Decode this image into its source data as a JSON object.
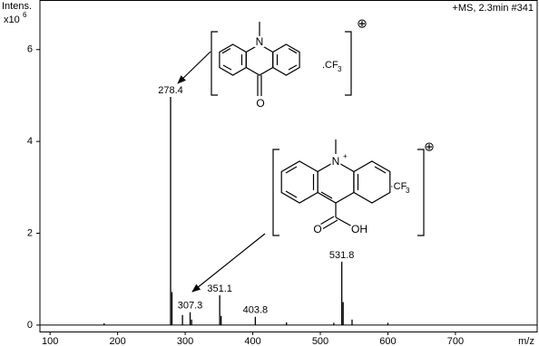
{
  "chart_data": {
    "type": "spectrum",
    "ylabel": "Intens.",
    "yunit": "x10",
    "yexp": 6,
    "info": "+MS, 2.3min #341",
    "xlabel": "m/z",
    "x": [
      278.4,
      307.3,
      351.1,
      403.8,
      531.8
    ],
    "values": [
      4.97,
      0.28,
      0.65,
      0.18,
      1.38
    ],
    "minor_peaks": {
      "x": [
        180,
        280.4,
        296,
        309.5,
        353.2,
        450,
        520,
        533.8,
        547,
        600
      ],
      "values": [
        0.04,
        0.72,
        0.22,
        0.12,
        0.2,
        0.06,
        0.05,
        0.5,
        0.12,
        0.05
      ]
    },
    "color": "#000000",
    "xlim": [
      85,
      821
    ],
    "xticks": [
      100,
      200,
      300,
      400,
      500,
      600,
      700
    ],
    "ylim": [
      -0.14,
      7.08
    ],
    "yticks": [
      0,
      2,
      4,
      6
    ],
    "annotations": {
      "mol1": {
        "N": "N",
        "O": "O",
        "salt": ".CF",
        "salt_sub": "3",
        "charge": "⊕"
      },
      "mol2": {
        "N": "N",
        "N_charge": "+",
        "O": "O",
        "OH": "OH",
        "salt": "·CF",
        "salt_sub": "3",
        "charge": "⊕"
      }
    }
  }
}
